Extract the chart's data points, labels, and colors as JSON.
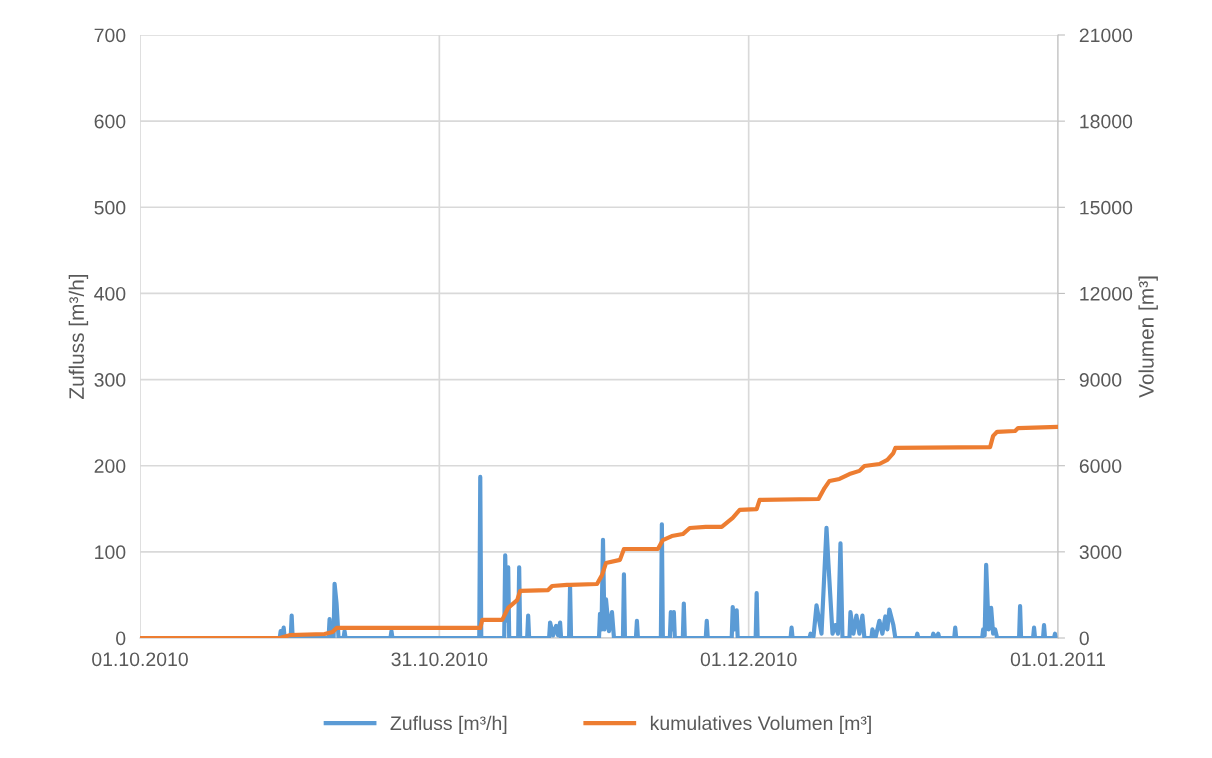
{
  "chart_data": {
    "type": "line",
    "ylabel": "Zufluss [m³/h]",
    "y2label": "Volumen [m³]",
    "xlim": [
      "2010-10-01",
      "2011-01-01"
    ],
    "xticks": [
      {
        "value": "2010-10-01",
        "label": "01.10.2010"
      },
      {
        "value": "2010-10-31",
        "label": "31.10.2010"
      },
      {
        "value": "2010-12-01",
        "label": "01.12.2010"
      },
      {
        "value": "2011-01-01",
        "label": "01.01.2011"
      }
    ],
    "ylim": [
      0,
      700
    ],
    "yticks": [
      0,
      100,
      200,
      300,
      400,
      500,
      600,
      700
    ],
    "y2lim": [
      0,
      21000
    ],
    "y2ticks": [
      0,
      3000,
      6000,
      9000,
      12000,
      15000,
      18000,
      21000
    ],
    "grid": true,
    "legend": "bottom",
    "series": [
      {
        "name": "Zufluss [m³/h]",
        "color": "#5b9bd5",
        "axis": "y",
        "x": [
          "2010-10-01T00:00",
          "2010-10-15T00:00",
          "2010-10-15T02:24",
          "2010-10-15T06:00",
          "2010-10-15T09:36",
          "2010-10-15T12:00",
          "2010-10-16T02:24",
          "2010-10-16T04:48",
          "2010-10-16T07:12",
          "2010-10-19T21:36",
          "2010-10-20T00:00",
          "2010-10-20T02:24",
          "2010-10-20T09:36",
          "2010-10-20T12:00",
          "2010-10-20T16:48",
          "2010-10-20T21:36",
          "2010-10-21T09:36",
          "2010-10-21T12:00",
          "2010-10-21T14:24",
          "2010-10-26T02:24",
          "2010-10-26T04:48",
          "2010-10-26T07:12",
          "2010-11-04T00:00",
          "2010-11-04T02:24",
          "2010-11-04T04:48",
          "2010-11-06T12:00",
          "2010-11-06T14:24",
          "2010-11-06T18:00",
          "2010-11-06T21:36",
          "2010-11-07T00:00",
          "2010-11-07T21:36",
          "2010-11-08T00:00",
          "2010-11-08T02:24",
          "2010-11-08T19:12",
          "2010-11-08T21:36",
          "2010-11-09T00:00",
          "2010-11-11T00:00",
          "2010-11-11T02:24",
          "2010-11-11T09:36",
          "2010-11-11T16:48",
          "2010-11-11T21:36",
          "2010-11-12T02:24",
          "2010-11-12T04:48",
          "2010-11-13T00:00",
          "2010-11-13T02:24",
          "2010-11-13T04:48",
          "2010-11-16T00:00",
          "2010-11-16T02:24",
          "2010-11-16T06:00",
          "2010-11-16T09:36",
          "2010-11-16T13:12",
          "2010-11-16T16:48",
          "2010-11-17T00:00",
          "2010-11-17T07:12",
          "2010-11-17T12:00",
          "2010-11-18T09:36",
          "2010-11-18T12:00",
          "2010-11-18T14:24",
          "2010-11-19T16:48",
          "2010-11-19T19:12",
          "2010-11-19T21:36",
          "2010-11-22T04:48",
          "2010-11-22T07:12",
          "2010-11-22T09:36",
          "2010-11-23T02:24",
          "2010-11-23T04:48",
          "2010-11-23T08:24",
          "2010-11-23T12:00",
          "2010-11-23T14:24",
          "2010-11-24T09:36",
          "2010-11-24T12:00",
          "2010-11-24T14:24",
          "2010-11-26T16:48",
          "2010-11-26T19:12",
          "2010-11-26T21:36",
          "2010-11-29T07:12",
          "2010-11-29T09:36",
          "2010-11-29T14:24",
          "2010-11-29T19:12",
          "2010-11-29T21:36",
          "2010-12-01T16:48",
          "2010-12-01T19:12",
          "2010-12-01T21:36",
          "2010-12-05T04:48",
          "2010-12-05T07:12",
          "2010-12-05T09:36",
          "2010-12-07T02:24",
          "2010-12-07T04:48",
          "2010-12-07T12:00",
          "2010-12-07T19:12",
          "2010-12-08T07:12",
          "2010-12-08T19:12",
          "2010-12-09T00:00",
          "2010-12-09T09:36",
          "2010-12-09T16:48",
          "2010-12-09T22:48",
          "2010-12-10T04:48",
          "2010-12-10T09:36",
          "2010-12-11T02:24",
          "2010-12-11T04:48",
          "2010-12-11T12:00",
          "2010-12-11T19:12",
          "2010-12-12T02:24",
          "2010-12-12T09:36",
          "2010-12-12T14:24",
          "2010-12-13T07:12",
          "2010-12-13T09:36",
          "2010-12-13T16:48",
          "2010-12-14T02:24",
          "2010-12-14T09:36",
          "2010-12-14T16:48",
          "2010-12-14T21:36",
          "2010-12-15T02:24",
          "2010-12-15T12:00",
          "2010-12-15T16:48",
          "2010-12-17T19:12",
          "2010-12-17T21:36",
          "2010-12-18T00:00",
          "2010-12-19T09:36",
          "2010-12-19T12:00",
          "2010-12-19T18:00",
          "2010-12-20T00:00",
          "2010-12-20T02:24",
          "2010-12-21T14:24",
          "2010-12-21T16:48",
          "2010-12-21T19:12",
          "2010-12-24T09:36",
          "2010-12-24T12:00",
          "2010-12-24T15:36",
          "2010-12-24T19:12",
          "2010-12-25T01:12",
          "2010-12-25T07:12",
          "2010-12-25T12:00",
          "2010-12-25T16:48",
          "2010-12-25T21:36",
          "2010-12-28T02:24",
          "2010-12-28T04:48",
          "2010-12-28T07:12",
          "2010-12-29T12:00",
          "2010-12-29T14:24",
          "2010-12-29T16:48",
          "2010-12-30T12:00",
          "2010-12-30T14:24",
          "2010-12-30T16:48",
          "2010-12-31T14:24",
          "2010-12-31T16:48",
          "2010-12-31T19:12",
          "2011-01-01T00:00"
        ],
        "values": [
          0,
          0,
          8,
          2,
          12,
          0,
          0,
          26,
          0,
          0,
          22,
          0,
          0,
          63,
          40,
          0,
          0,
          8,
          0,
          0,
          8,
          0,
          0,
          187,
          0,
          0,
          96,
          20,
          82,
          0,
          0,
          82,
          0,
          0,
          26,
          0,
          0,
          18,
          3,
          14,
          3,
          18,
          0,
          0,
          60,
          0,
          0,
          28,
          10,
          114,
          10,
          45,
          8,
          30,
          0,
          0,
          74,
          0,
          0,
          20,
          0,
          0,
          132,
          0,
          0,
          30,
          10,
          30,
          0,
          0,
          40,
          0,
          0,
          20,
          0,
          0,
          36,
          10,
          32,
          0,
          0,
          52,
          0,
          0,
          12,
          0,
          0,
          5,
          2,
          38,
          5,
          128,
          85,
          5,
          15,
          5,
          110,
          0,
          0,
          30,
          5,
          26,
          5,
          26,
          0,
          0,
          10,
          0,
          20,
          5,
          25,
          10,
          33,
          15,
          0,
          0,
          5,
          0,
          0,
          5,
          0,
          5,
          0,
          0,
          12,
          0,
          0,
          10,
          3,
          85,
          10,
          35,
          5,
          10,
          0,
          0,
          37,
          0,
          0,
          12,
          0,
          0,
          15,
          0,
          0,
          5,
          0,
          0
        ]
      },
      {
        "name": "kumulatives Volumen [m³]",
        "color": "#ed7d31",
        "axis": "y2",
        "x": [
          "2010-10-01T00:00",
          "2010-10-15T00:00",
          "2010-10-16T00:00",
          "2010-10-19T12:00",
          "2010-10-20T07:12",
          "2010-10-20T16:48",
          "2010-11-04T02:24",
          "2010-11-04T07:12",
          "2010-11-06T07:12",
          "2010-11-06T21:36",
          "2010-11-07T19:12",
          "2010-11-08T02:24",
          "2010-11-10T21:36",
          "2010-11-11T07:12",
          "2010-11-12T19:12",
          "2010-11-13T02:24",
          "2010-11-15T19:12",
          "2010-11-16T07:12",
          "2010-11-16T16:48",
          "2010-11-18T02:24",
          "2010-11-18T12:00",
          "2010-11-21T21:36",
          "2010-11-22T09:36",
          "2010-11-23T07:12",
          "2010-11-24T09:36",
          "2010-11-25T02:24",
          "2010-11-26T16:48",
          "2010-11-28T07:12",
          "2010-11-29T09:36",
          "2010-11-30T02:24",
          "2010-12-01T19:12",
          "2010-12-02T02:24",
          "2010-12-08T00:00",
          "2010-12-08T14:24",
          "2010-12-09T02:24",
          "2010-12-10T02:24",
          "2010-12-11T02:24",
          "2010-12-12T02:24",
          "2010-12-12T14:24",
          "2010-12-14T02:24",
          "2010-12-14T21:36",
          "2010-12-15T12:00",
          "2010-12-15T16:48",
          "2010-12-25T04:48",
          "2010-12-25T12:00",
          "2010-12-25T21:36",
          "2010-12-27T16:48",
          "2010-12-28T00:00",
          "2011-01-01T00:00"
        ],
        "values": [
          0,
          0,
          100,
          140,
          210,
          350,
          350,
          630,
          630,
          1050,
          1320,
          1640,
          1670,
          1810,
          1850,
          1850,
          1880,
          2190,
          2610,
          2720,
          3100,
          3100,
          3410,
          3550,
          3620,
          3830,
          3870,
          3870,
          4180,
          4460,
          4490,
          4810,
          4840,
          5220,
          5470,
          5540,
          5710,
          5820,
          5990,
          6060,
          6200,
          6440,
          6620,
          6650,
          7040,
          7180,
          7210,
          7310,
          7350
        ]
      }
    ]
  }
}
